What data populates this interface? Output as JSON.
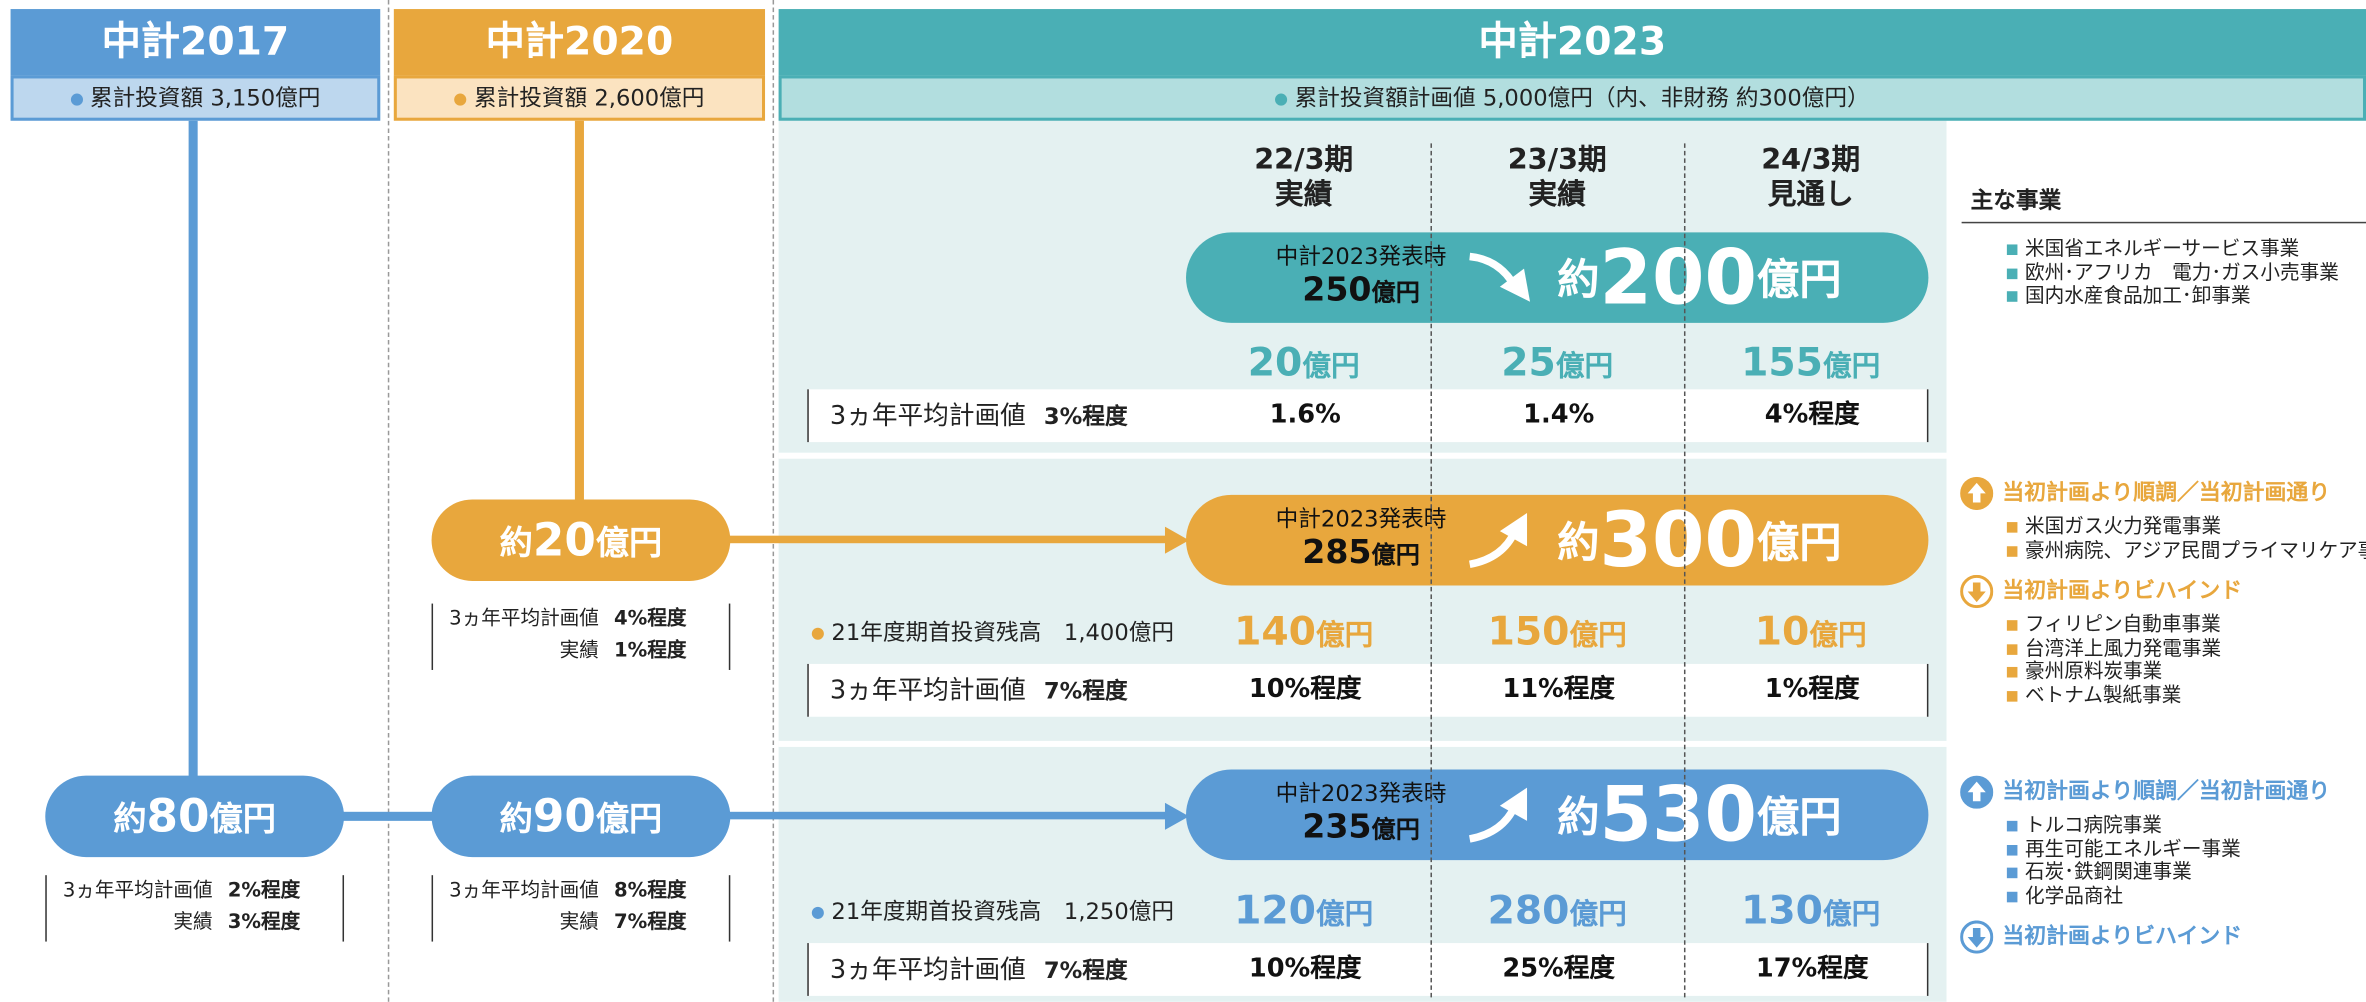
{
  "columns": [
    {
      "title": "中計2017",
      "summary": "累計投資額 3,150億円"
    },
    {
      "title": "中計2020",
      "summary": "累計投資額 2,600億円"
    },
    {
      "title": "中計2023",
      "summary": "累計投資額計画値 5,000億円（内、非財務 約300億円）"
    }
  ],
  "periods": [
    {
      "period": "22/3期",
      "status": "実績"
    },
    {
      "period": "23/3期",
      "status": "実績"
    },
    {
      "period": "24/3期",
      "status": "見通し"
    }
  ],
  "business_heading": "主な事業",
  "rows": [
    {
      "announce": {
        "label": "中計2023発表時",
        "amount": "250",
        "unit": "億円"
      },
      "result": {
        "prefix": "約",
        "amount": "200",
        "unit": "億円"
      },
      "yearly": [
        {
          "amount": "20",
          "unit": "億円"
        },
        {
          "amount": "25",
          "unit": "億円"
        },
        {
          "amount": "155",
          "unit": "億円"
        }
      ],
      "plan": {
        "label": "3ヵ年平均計画値",
        "value": "3%程度",
        "cells": [
          "1.6%",
          "1.4%",
          "4%程度"
        ]
      },
      "businesses": [
        {
          "items": [
            "米国省エネルギーサービス事業",
            "欧州･アフリカ　電力･ガス小売事業",
            "国内水産食品加工･卸事業"
          ]
        }
      ]
    },
    {
      "announce": {
        "label": "中計2023発表時",
        "amount": "285",
        "unit": "億円"
      },
      "result": {
        "prefix": "約",
        "amount": "300",
        "unit": "億円"
      },
      "balance": "21年度期首投資残高　1,400億円",
      "yearly": [
        {
          "amount": "140",
          "unit": "億円"
        },
        {
          "amount": "150",
          "unit": "億円"
        },
        {
          "amount": "10",
          "unit": "億円"
        }
      ],
      "plan": {
        "label": "3ヵ年平均計画値",
        "value": "7%程度",
        "cells": [
          "10%程度",
          "11%程度",
          "1%程度"
        ]
      },
      "chu2020": {
        "prefix": "約",
        "amount": "20",
        "unit": "億円",
        "plan_label": "3ヵ年平均計画値",
        "plan_value": "4%程度",
        "actual_label": "実績",
        "actual_value": "1%程度"
      },
      "businesses": [
        {
          "heading": "当初計画より順調／当初計画通り",
          "items": [
            "米国ガス火力発電事業",
            "豪州病院、アジア民間プライマリケア事業"
          ]
        },
        {
          "heading": "当初計画よりビハインド",
          "items": [
            "フィリピン自動車事業",
            "台湾洋上風力発電事業",
            "豪州原料炭事業",
            "ベトナム製紙事業"
          ]
        }
      ]
    },
    {
      "announce": {
        "label": "中計2023発表時",
        "amount": "235",
        "unit": "億円"
      },
      "result": {
        "prefix": "約",
        "amount": "530",
        "unit": "億円"
      },
      "balance": "21年度期首投資残高　1,250億円",
      "yearly": [
        {
          "amount": "120",
          "unit": "億円"
        },
        {
          "amount": "280",
          "unit": "億円"
        },
        {
          "amount": "130",
          "unit": "億円"
        }
      ],
      "plan": {
        "label": "3ヵ年平均計画値",
        "value": "7%程度",
        "cells": [
          "10%程度",
          "25%程度",
          "17%程度"
        ]
      },
      "chu2017": {
        "prefix": "約",
        "amount": "80",
        "unit": "億円",
        "plan_label": "3ヵ年平均計画値",
        "plan_value": "2%程度",
        "actual_label": "実績",
        "actual_value": "3%程度"
      },
      "chu2020": {
        "prefix": "約",
        "amount": "90",
        "unit": "億円",
        "plan_label": "3ヵ年平均計画値",
        "plan_value": "8%程度",
        "actual_label": "実績",
        "actual_value": "7%程度"
      },
      "businesses": [
        {
          "heading": "当初計画より順調／当初計画通り",
          "items": [
            "トルコ病院事業",
            "再生可能エネルギー事業",
            "石炭･鉄鋼関連事業",
            "化学品商社"
          ]
        },
        {
          "heading": "当初計画よりビハインド",
          "items": []
        }
      ]
    }
  ]
}
